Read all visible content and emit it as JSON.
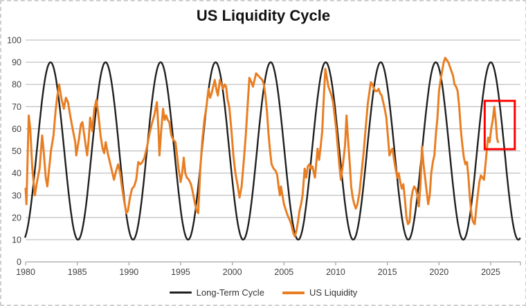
{
  "title": "US Liquidity Cycle",
  "colors": {
    "long_term_cycle": "#1f1f1f",
    "us_liquidity": "#E87E23",
    "gridline": "#b0b0b0",
    "axis_line": "#a6a6a6",
    "tick_label": "#404040",
    "highlight_box": "#fe0000",
    "background": "#ffffff"
  },
  "legend": {
    "items": [
      {
        "label": "Long-Term Cycle",
        "color": "#1f1f1f"
      },
      {
        "label": "US Liquidity",
        "color": "#E87E23"
      }
    ]
  },
  "chart_data": {
    "type": "line",
    "title": "US Liquidity Cycle",
    "xlabel": "",
    "ylabel": "",
    "x_axis": {
      "ticks": [
        1980,
        1985,
        1990,
        1995,
        2000,
        2005,
        2010,
        2015,
        2020,
        2025
      ],
      "range": [
        1980,
        2027.85
      ]
    },
    "y_axis": {
      "ticks": [
        0,
        10,
        20,
        30,
        40,
        50,
        60,
        70,
        80,
        90,
        100
      ],
      "range": [
        0,
        100
      ],
      "gridlines_at": [
        10,
        20,
        30,
        40,
        50,
        60,
        70,
        80,
        90,
        100
      ]
    },
    "grid": "horizontal-only",
    "legend_position": "bottom-center",
    "series": [
      {
        "name": "Long-Term Cycle",
        "style": "smooth-sine",
        "color": "#1f1f1f",
        "midline": 50,
        "amplitude": 40,
        "period_years": 5.325,
        "peak_year": 1982.41,
        "draw_range": [
          1979.93,
          2027.85
        ]
      },
      {
        "name": "US Liquidity",
        "style": "jagged-line",
        "color": "#E87E23",
        "points": [
          [
            1980.0,
            33
          ],
          [
            1980.08,
            26
          ],
          [
            1980.3,
            66
          ],
          [
            1980.45,
            60
          ],
          [
            1980.65,
            42
          ],
          [
            1980.9,
            30
          ],
          [
            1981.1,
            36
          ],
          [
            1981.35,
            42
          ],
          [
            1981.6,
            57
          ],
          [
            1981.75,
            50
          ],
          [
            1981.95,
            38
          ],
          [
            1982.1,
            34
          ],
          [
            1982.45,
            50
          ],
          [
            1982.7,
            57
          ],
          [
            1982.9,
            68
          ],
          [
            1983.05,
            74
          ],
          [
            1983.25,
            80
          ],
          [
            1983.45,
            74
          ],
          [
            1983.7,
            69
          ],
          [
            1983.9,
            74
          ],
          [
            1984.1,
            72
          ],
          [
            1984.35,
            65
          ],
          [
            1984.55,
            60
          ],
          [
            1984.8,
            54
          ],
          [
            1984.9,
            48
          ],
          [
            1985.15,
            55
          ],
          [
            1985.35,
            62
          ],
          [
            1985.5,
            63
          ],
          [
            1985.8,
            53
          ],
          [
            1985.95,
            48
          ],
          [
            1986.1,
            55
          ],
          [
            1986.25,
            65
          ],
          [
            1986.45,
            59
          ],
          [
            1986.65,
            69
          ],
          [
            1986.85,
            73
          ],
          [
            1987.05,
            66
          ],
          [
            1987.25,
            57
          ],
          [
            1987.45,
            51
          ],
          [
            1987.6,
            49
          ],
          [
            1987.75,
            54
          ],
          [
            1987.95,
            49
          ],
          [
            1988.15,
            45
          ],
          [
            1988.35,
            41
          ],
          [
            1988.55,
            37
          ],
          [
            1988.75,
            41
          ],
          [
            1988.95,
            44
          ],
          [
            1989.15,
            40
          ],
          [
            1989.35,
            33
          ],
          [
            1989.55,
            27
          ],
          [
            1989.75,
            22
          ],
          [
            1989.9,
            23
          ],
          [
            1990.1,
            29
          ],
          [
            1990.3,
            33
          ],
          [
            1990.5,
            34
          ],
          [
            1990.7,
            37
          ],
          [
            1990.9,
            45
          ],
          [
            1991.1,
            44
          ],
          [
            1991.3,
            45
          ],
          [
            1991.5,
            47
          ],
          [
            1991.75,
            52
          ],
          [
            1992.0,
            58
          ],
          [
            1992.2,
            62
          ],
          [
            1992.45,
            66
          ],
          [
            1992.7,
            72
          ],
          [
            1992.85,
            60
          ],
          [
            1992.95,
            48
          ],
          [
            1993.1,
            58
          ],
          [
            1993.3,
            69
          ],
          [
            1993.45,
            64
          ],
          [
            1993.6,
            66
          ],
          [
            1993.75,
            64
          ],
          [
            1993.9,
            63
          ],
          [
            1994.1,
            57
          ],
          [
            1994.3,
            55
          ],
          [
            1994.5,
            54
          ],
          [
            1994.65,
            48
          ],
          [
            1994.8,
            42
          ],
          [
            1995.0,
            36
          ],
          [
            1995.15,
            40
          ],
          [
            1995.3,
            47
          ],
          [
            1995.45,
            40
          ],
          [
            1995.6,
            38
          ],
          [
            1995.8,
            37
          ],
          [
            1996.0,
            35
          ],
          [
            1996.15,
            32
          ],
          [
            1996.35,
            27
          ],
          [
            1996.55,
            23
          ],
          [
            1996.7,
            22
          ],
          [
            1996.9,
            42
          ],
          [
            1997.1,
            55
          ],
          [
            1997.3,
            64
          ],
          [
            1997.5,
            70
          ],
          [
            1997.7,
            78
          ],
          [
            1997.85,
            74
          ],
          [
            1998.0,
            76
          ],
          [
            1998.15,
            79
          ],
          [
            1998.3,
            82
          ],
          [
            1998.45,
            78
          ],
          [
            1998.6,
            75
          ],
          [
            1998.8,
            82
          ],
          [
            1998.95,
            80
          ],
          [
            1999.1,
            78
          ],
          [
            1999.25,
            80
          ],
          [
            1999.4,
            79
          ],
          [
            1999.55,
            73
          ],
          [
            1999.7,
            70
          ],
          [
            1999.9,
            60
          ],
          [
            2000.1,
            48
          ],
          [
            2000.3,
            40
          ],
          [
            2000.5,
            35
          ],
          [
            2000.7,
            29
          ],
          [
            2000.9,
            34
          ],
          [
            2001.1,
            45
          ],
          [
            2001.3,
            57
          ],
          [
            2001.5,
            72
          ],
          [
            2001.65,
            83
          ],
          [
            2001.85,
            81
          ],
          [
            2002.0,
            79
          ],
          [
            2002.15,
            82
          ],
          [
            2002.3,
            85
          ],
          [
            2002.5,
            84
          ],
          [
            2002.7,
            83
          ],
          [
            2002.9,
            82
          ],
          [
            2003.05,
            80
          ],
          [
            2003.2,
            75
          ],
          [
            2003.35,
            68
          ],
          [
            2003.5,
            58
          ],
          [
            2003.65,
            50
          ],
          [
            2003.8,
            44
          ],
          [
            2004.0,
            42
          ],
          [
            2004.2,
            41
          ],
          [
            2004.35,
            39
          ],
          [
            2004.5,
            33
          ],
          [
            2004.6,
            30
          ],
          [
            2004.7,
            34
          ],
          [
            2004.85,
            30
          ],
          [
            2005.0,
            26
          ],
          [
            2005.2,
            23
          ],
          [
            2005.35,
            21
          ],
          [
            2005.55,
            19
          ],
          [
            2005.7,
            17
          ],
          [
            2005.9,
            13
          ],
          [
            2006.05,
            11.5
          ],
          [
            2006.2,
            14
          ],
          [
            2006.35,
            18
          ],
          [
            2006.5,
            23
          ],
          [
            2006.65,
            26
          ],
          [
            2006.8,
            30
          ],
          [
            2007.0,
            42
          ],
          [
            2007.15,
            38
          ],
          [
            2007.3,
            43
          ],
          [
            2007.45,
            44
          ],
          [
            2007.6,
            42
          ],
          [
            2007.75,
            43
          ],
          [
            2007.9,
            40
          ],
          [
            2008.0,
            38
          ],
          [
            2008.15,
            46
          ],
          [
            2008.25,
            51
          ],
          [
            2008.4,
            46
          ],
          [
            2008.55,
            52
          ],
          [
            2008.7,
            59
          ],
          [
            2008.85,
            74
          ],
          [
            2009.0,
            87
          ],
          [
            2009.15,
            83
          ],
          [
            2009.3,
            79
          ],
          [
            2009.45,
            77
          ],
          [
            2009.6,
            75
          ],
          [
            2009.75,
            72
          ],
          [
            2009.9,
            66
          ],
          [
            2010.05,
            60
          ],
          [
            2010.2,
            52
          ],
          [
            2010.35,
            44
          ],
          [
            2010.5,
            37
          ],
          [
            2010.7,
            44
          ],
          [
            2010.9,
            52
          ],
          [
            2011.05,
            66
          ],
          [
            2011.2,
            55
          ],
          [
            2011.35,
            45
          ],
          [
            2011.5,
            34
          ],
          [
            2011.65,
            29
          ],
          [
            2011.8,
            26
          ],
          [
            2011.95,
            24
          ],
          [
            2012.1,
            26
          ],
          [
            2012.3,
            31
          ],
          [
            2012.5,
            40
          ],
          [
            2012.7,
            49
          ],
          [
            2012.9,
            60
          ],
          [
            2013.1,
            71
          ],
          [
            2013.25,
            76
          ],
          [
            2013.4,
            81
          ],
          [
            2013.55,
            80
          ],
          [
            2013.7,
            78
          ],
          [
            2013.85,
            77
          ],
          [
            2014.0,
            77
          ],
          [
            2014.15,
            78
          ],
          [
            2014.3,
            76
          ],
          [
            2014.45,
            75
          ],
          [
            2014.6,
            72
          ],
          [
            2014.75,
            69
          ],
          [
            2014.9,
            65
          ],
          [
            2015.05,
            57
          ],
          [
            2015.2,
            48
          ],
          [
            2015.35,
            50
          ],
          [
            2015.5,
            51
          ],
          [
            2015.65,
            46
          ],
          [
            2015.8,
            42
          ],
          [
            2015.95,
            38
          ],
          [
            2016.1,
            40
          ],
          [
            2016.25,
            36
          ],
          [
            2016.4,
            33
          ],
          [
            2016.55,
            35
          ],
          [
            2016.7,
            28
          ],
          [
            2016.85,
            20
          ],
          [
            2017.0,
            17
          ],
          [
            2017.15,
            18
          ],
          [
            2017.3,
            28
          ],
          [
            2017.45,
            32
          ],
          [
            2017.6,
            34
          ],
          [
            2017.75,
            33
          ],
          [
            2017.9,
            30
          ],
          [
            2018.05,
            25
          ],
          [
            2018.2,
            35
          ],
          [
            2018.35,
            52
          ],
          [
            2018.5,
            44
          ],
          [
            2018.65,
            38
          ],
          [
            2018.8,
            32
          ],
          [
            2018.95,
            26
          ],
          [
            2019.1,
            30
          ],
          [
            2019.25,
            40
          ],
          [
            2019.4,
            45
          ],
          [
            2019.55,
            48
          ],
          [
            2019.7,
            58
          ],
          [
            2019.85,
            65
          ],
          [
            2020.0,
            77
          ],
          [
            2020.15,
            82
          ],
          [
            2020.3,
            86
          ],
          [
            2020.45,
            90
          ],
          [
            2020.6,
            92
          ],
          [
            2020.75,
            91
          ],
          [
            2020.9,
            90
          ],
          [
            2021.05,
            88
          ],
          [
            2021.2,
            86
          ],
          [
            2021.35,
            84
          ],
          [
            2021.5,
            80
          ],
          [
            2021.65,
            79
          ],
          [
            2021.8,
            77
          ],
          [
            2021.95,
            70
          ],
          [
            2022.1,
            60
          ],
          [
            2022.25,
            53
          ],
          [
            2022.4,
            47
          ],
          [
            2022.55,
            44
          ],
          [
            2022.7,
            45
          ],
          [
            2022.85,
            38
          ],
          [
            2023.0,
            28
          ],
          [
            2023.15,
            21
          ],
          [
            2023.3,
            18
          ],
          [
            2023.45,
            17
          ],
          [
            2023.6,
            24
          ],
          [
            2023.75,
            30
          ],
          [
            2023.9,
            36
          ],
          [
            2024.05,
            39
          ],
          [
            2024.2,
            38
          ],
          [
            2024.35,
            37
          ],
          [
            2024.5,
            44
          ],
          [
            2024.65,
            52
          ],
          [
            2024.75,
            56
          ],
          [
            2024.9,
            54
          ],
          [
            2025.05,
            60
          ],
          [
            2025.2,
            64
          ],
          [
            2025.35,
            70
          ],
          [
            2025.5,
            63
          ],
          [
            2025.6,
            56
          ],
          [
            2025.7,
            54
          ]
        ]
      }
    ],
    "annotations": [
      {
        "type": "highlight-box",
        "x_range": [
          2024.42,
          2027.33
        ],
        "y_range": [
          50.8,
          72.6
        ],
        "color": "#fe0000"
      }
    ]
  }
}
